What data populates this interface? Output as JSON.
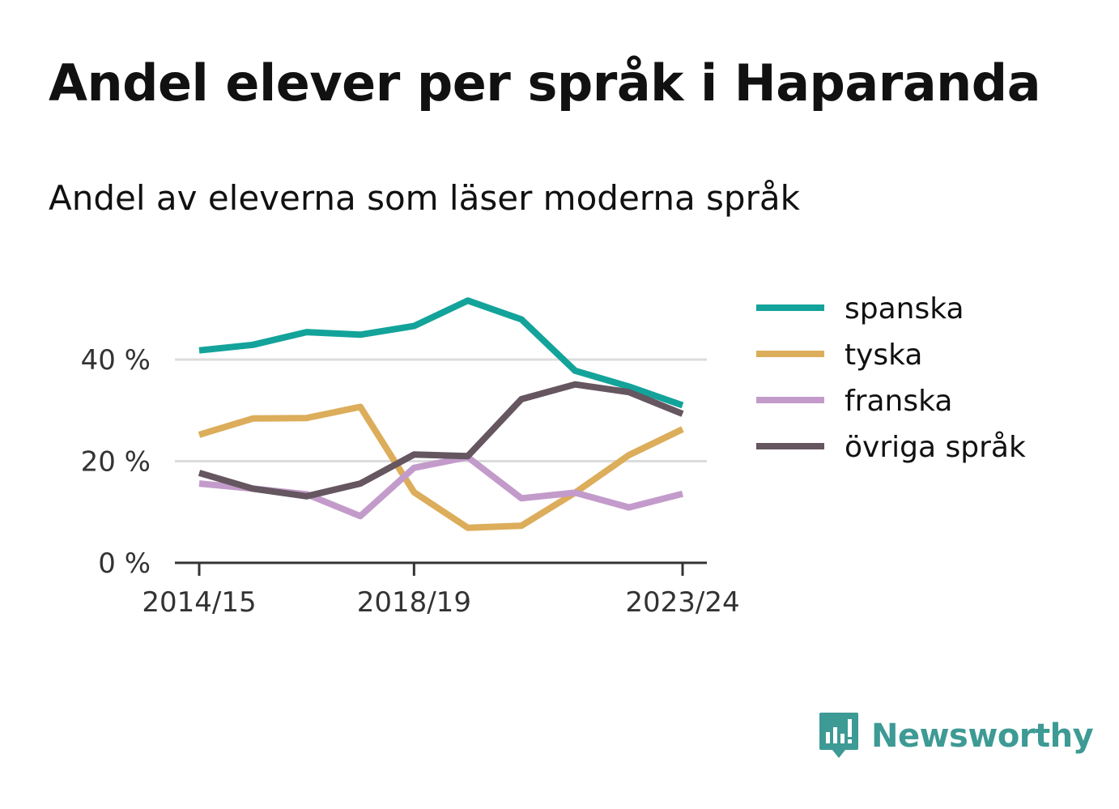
{
  "title": "Andel elever per språk i Haparanda",
  "subtitle": "Andel av eleverna som läser moderna språk",
  "brand": {
    "name": "Newsworthy",
    "color": "#3d9a94",
    "icon": "newsworthy-logo-icon"
  },
  "chart_data": {
    "type": "line",
    "x": [
      "2014/15",
      "2015/16",
      "2016/17",
      "2017/18",
      "2018/19",
      "2019/20",
      "2020/21",
      "2021/22",
      "2022/23",
      "2023/24"
    ],
    "x_tick_labels": [
      "2014/15",
      "2018/19",
      "2023/24"
    ],
    "y_ticks": [
      0,
      20,
      40
    ],
    "y_tick_labels": [
      "0 %",
      "20 %",
      "40 %"
    ],
    "ylim": [
      0,
      52
    ],
    "grid": true,
    "legend_position": "right",
    "series": [
      {
        "name": "spanska",
        "color": "#13a39a",
        "values": [
          41.8,
          42.9,
          45.4,
          44.9,
          46.6,
          51.6,
          47.9,
          37.8,
          34.7,
          31.0
        ]
      },
      {
        "name": "tyska",
        "color": "#dcad5a",
        "values": [
          25.2,
          28.4,
          28.5,
          30.7,
          13.9,
          6.9,
          7.3,
          13.8,
          21.2,
          26.3
        ]
      },
      {
        "name": "franska",
        "color": "#c39bcb",
        "values": [
          15.6,
          14.6,
          13.5,
          9.2,
          18.7,
          20.8,
          12.7,
          13.8,
          10.9,
          13.6
        ]
      },
      {
        "name": "övriga språk",
        "color": "#655660",
        "values": [
          17.7,
          14.6,
          13.1,
          15.6,
          21.3,
          21.0,
          32.2,
          35.1,
          33.6,
          29.3
        ]
      }
    ]
  }
}
